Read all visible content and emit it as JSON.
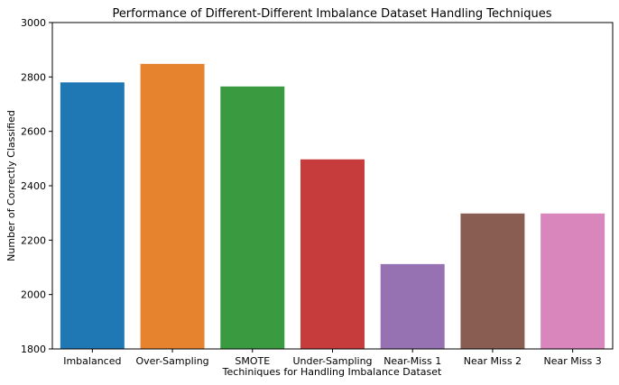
{
  "chart_data": {
    "type": "bar",
    "title": "Performance of Different-Different Imbalance Dataset Handling Techniques",
    "xlabel": "Techiniques for Handling Imbalance Dataset",
    "ylabel": "Number of Correctly Classified",
    "categories": [
      "Imbalanced",
      "Over-Sampling",
      "SMOTE",
      "Under-Sampling",
      "Near-Miss 1",
      "Near Miss 2",
      "Near Miss 3"
    ],
    "values": [
      2780,
      2848,
      2765,
      2497,
      2112,
      2298,
      2298
    ],
    "colors": [
      "#1f77b4",
      "#e6832e",
      "#3a9a40",
      "#c63c3c",
      "#9672b3",
      "#8a5d52",
      "#d986bd"
    ],
    "ylim": [
      1800,
      3000
    ],
    "yticks": [
      1800,
      2000,
      2200,
      2400,
      2600,
      2800,
      3000
    ],
    "grid": false,
    "legend": "none"
  }
}
